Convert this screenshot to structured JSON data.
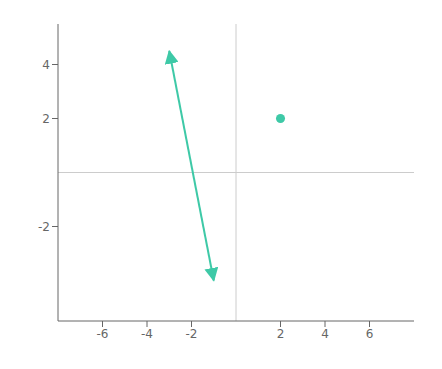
{
  "chart_data": {
    "type": "line",
    "xlim": [
      -8,
      8
    ],
    "ylim": [
      -5.5,
      5.5
    ],
    "xticks": [
      -6,
      -4,
      -2,
      2,
      4,
      6
    ],
    "yticks": [
      -2,
      2,
      4
    ],
    "grid": false,
    "series": [
      {
        "type": "line",
        "x": [
          -3.0,
          -1.0
        ],
        "values": [
          4.5,
          -4.0
        ],
        "color": "#3EC9A7",
        "marker": "arrow"
      },
      {
        "type": "scatter",
        "x": [
          2
        ],
        "values": [
          2
        ],
        "color": "#3EC9A7",
        "marker": "o"
      }
    ]
  }
}
